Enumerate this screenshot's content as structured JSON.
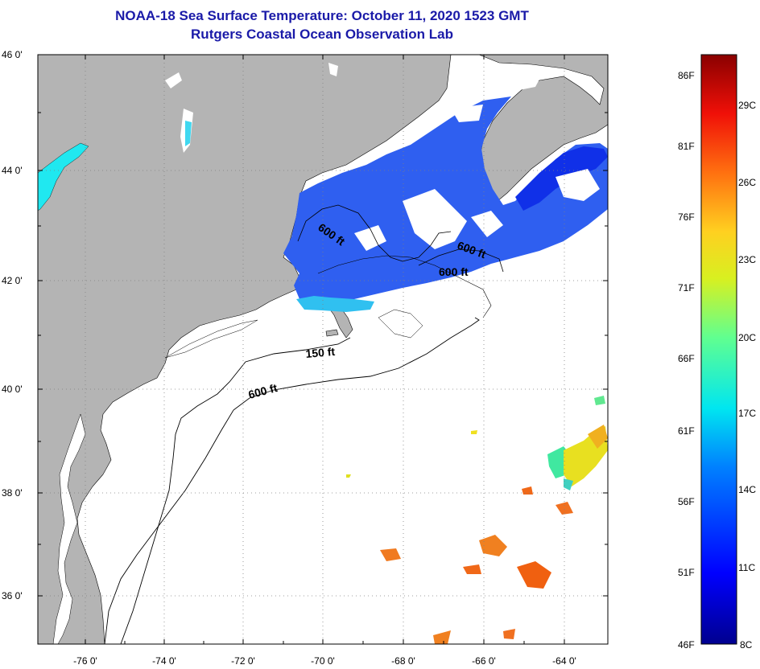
{
  "header": {
    "title_line_1": "NOAA-18 Sea Surface Temperature:  October 11, 2020 1523 GMT",
    "title_line_2": "Rutgers Coastal Ocean Observation Lab"
  },
  "map": {
    "latitude_labels": [
      "46 0'",
      "44 0'",
      "42 0'",
      "40 0'",
      "38 0'",
      "36 0'"
    ],
    "longitude_labels": [
      "-76 0'",
      "-74 0'",
      "-72 0'",
      "-70 0'",
      "-68 0'",
      "-66 0'",
      "-64 0'"
    ],
    "contour_labels": {
      "gulf_maine_600": "600 ft",
      "georges_600_a": "600 ft",
      "georges_600_b": "600 ft",
      "shelf_150": "150 ft",
      "shelf_600": "600 ft"
    },
    "colors": {
      "land": "#b4b4b4",
      "ocean_no_data": "#ffffff",
      "grid": "#808080"
    }
  },
  "colorbar": {
    "fahrenheit_labels": [
      "86F",
      "81F",
      "76F",
      "71F",
      "66F",
      "61F",
      "56F",
      "51F",
      "46F"
    ],
    "celsius_labels": [
      "29C",
      "26C",
      "23C",
      "20C",
      "17C",
      "14C",
      "11C",
      "8C"
    ]
  }
}
